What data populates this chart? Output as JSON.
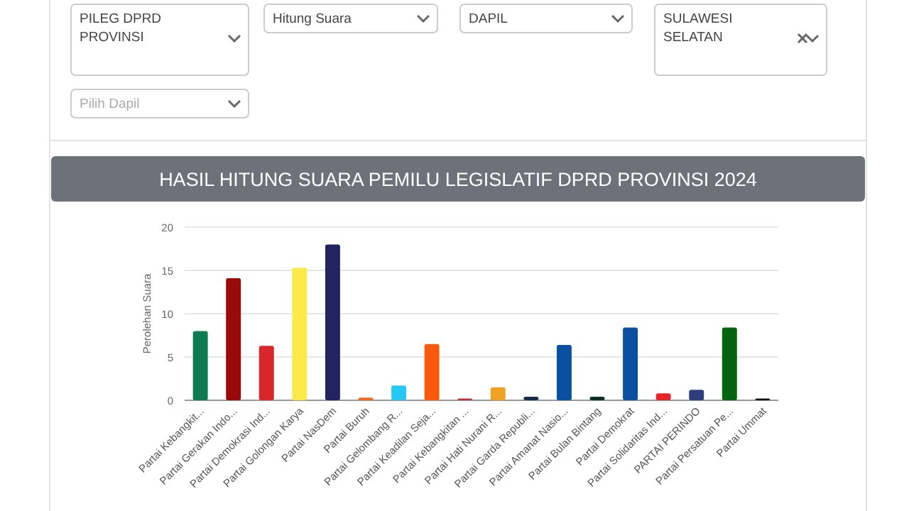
{
  "chart_data": {
    "type": "bar",
    "title": "HASIL HITUNG SUARA PEMILU LEGISLATIF DPRD PROVINSI 2024",
    "ylabel": "Perolehan Suara",
    "categories": [
      "Partai Kebangkit...",
      "Partai Gerakan Indo...",
      "Partai Demokrasi Ind...",
      "Partai Golongan Karya",
      "Partai NasDem",
      "Partai Buruh",
      "Partai Gelombang R...",
      "Partai Keadilan Seja...",
      "Partai Kebangkitan ...",
      "Partai Hati Nurani R...",
      "Partai Garda Republi...",
      "Partai Amanat Nasio...",
      "Partai Bulan Bintang",
      "Partai Demokrat",
      "Partai Solidaritas Ind...",
      "PARTAI PERINDO",
      "Partai Persatuan Pe...",
      "Partai Ummat"
    ],
    "values": [
      8,
      14.1,
      6.3,
      15.3,
      18,
      0.3,
      1.7,
      6.5,
      0.2,
      1.5,
      0.4,
      6.4,
      0.4,
      8.4,
      0.8,
      1.2,
      8.4,
      0.2
    ],
    "colors": [
      "#0d7a52",
      "#9b0a0a",
      "#d8262b",
      "#fbe94a",
      "#232360",
      "#ee6a22",
      "#25c8f2",
      "#fb5a0c",
      "#c0313c",
      "#eea122",
      "#162a4a",
      "#0a4fa0",
      "#0c2f22",
      "#0a4fa0",
      "#e8232a",
      "#2e3d7c",
      "#04630c",
      "#111111"
    ],
    "ylim": [
      0,
      20
    ],
    "yticks": [
      0,
      5,
      10,
      15,
      20
    ],
    "grid": "y",
    "annotations": [
      "PILEG DPRD PROVINSI",
      "Hitung Suara",
      "DAPIL",
      "SULAWESI SELATAN",
      "Pilih Dapil"
    ]
  }
}
